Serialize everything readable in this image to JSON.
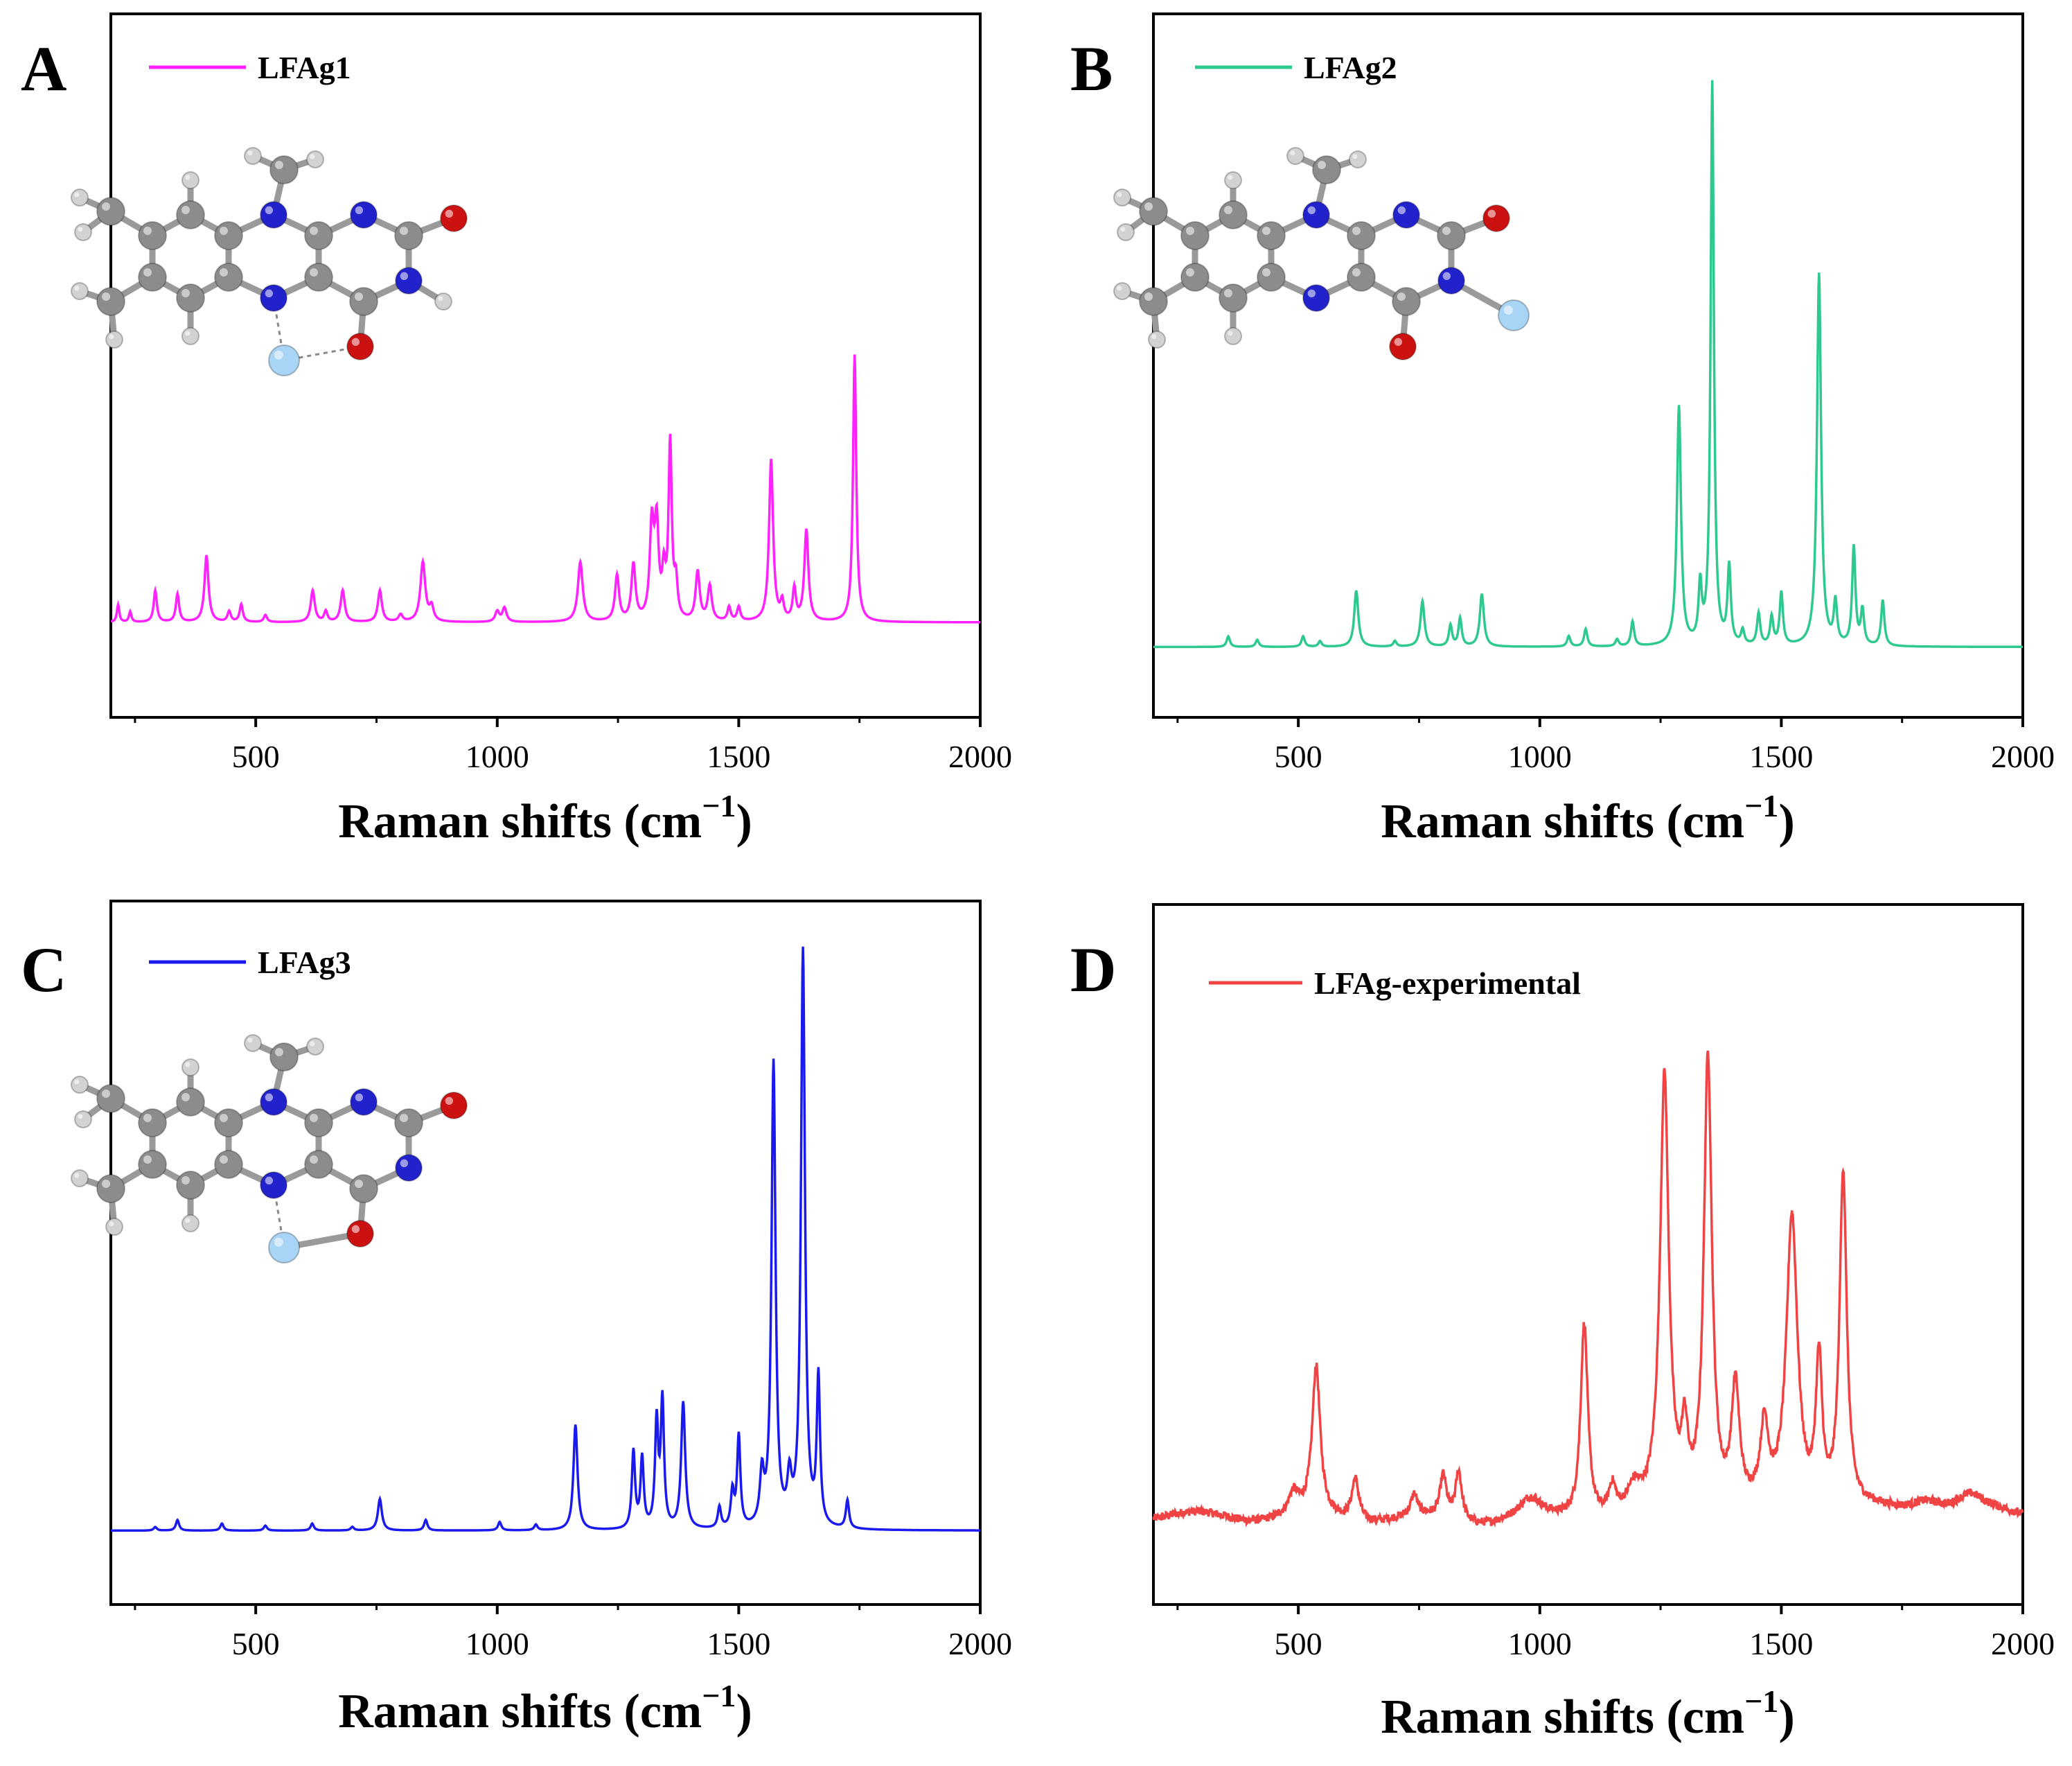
{
  "chart_data": [
    {
      "panel": "A",
      "type": "line",
      "series": [
        {
          "name": "LFAg1",
          "color": "#ff22ff"
        }
      ],
      "xlabel": "Raman shifts (cm−1)",
      "xlim": [
        200,
        2000
      ],
      "xticks": [
        500,
        1000,
        1500,
        2000
      ],
      "ylim": [
        0,
        100
      ],
      "baseline": 13.5,
      "noise": 0,
      "peaks": [
        [
          215,
          2.5,
          3
        ],
        [
          240,
          1.5,
          3
        ],
        [
          292,
          4.5,
          4
        ],
        [
          338,
          4,
          4
        ],
        [
          398,
          9.5,
          5
        ],
        [
          445,
          1.5,
          4
        ],
        [
          470,
          2.5,
          4
        ],
        [
          520,
          1,
          4
        ],
        [
          618,
          4.5,
          5
        ],
        [
          645,
          1.5,
          4
        ],
        [
          680,
          4.5,
          5
        ],
        [
          757,
          4.5,
          5
        ],
        [
          800,
          1,
          5
        ],
        [
          846,
          8.5,
          6
        ],
        [
          864,
          2,
          5
        ],
        [
          1000,
          1.5,
          5
        ],
        [
          1015,
          2,
          5
        ],
        [
          1172,
          8.5,
          6
        ],
        [
          1248,
          6.5,
          5
        ],
        [
          1282,
          8,
          5
        ],
        [
          1320,
          13,
          5
        ],
        [
          1330,
          13,
          5
        ],
        [
          1345,
          6,
          4
        ],
        [
          1358,
          25,
          4
        ],
        [
          1370,
          5,
          4
        ],
        [
          1415,
          7,
          5
        ],
        [
          1440,
          5,
          5
        ],
        [
          1480,
          2,
          4
        ],
        [
          1500,
          2,
          4
        ],
        [
          1567,
          23,
          5
        ],
        [
          1590,
          2.5,
          4
        ],
        [
          1615,
          4.5,
          4
        ],
        [
          1640,
          13,
          5
        ],
        [
          1740,
          38,
          4
        ]
      ],
      "molecule": "LFAg1"
    },
    {
      "panel": "B",
      "type": "line",
      "series": [
        {
          "name": "LFAg2",
          "color": "#2ec98e"
        }
      ],
      "xlabel": "Raman shifts (cm−1)",
      "xlim": [
        200,
        2000
      ],
      "xticks": [
        500,
        1000,
        1500,
        2000
      ],
      "ylim": [
        0,
        100
      ],
      "baseline": 10,
      "noise": 0,
      "peaks": [
        [
          355,
          1.5,
          4
        ],
        [
          415,
          1,
          4
        ],
        [
          510,
          1.5,
          4
        ],
        [
          545,
          0.8,
          4
        ],
        [
          620,
          8,
          5
        ],
        [
          700,
          0.8,
          4
        ],
        [
          757,
          6.5,
          5
        ],
        [
          815,
          3,
          4
        ],
        [
          835,
          4,
          4
        ],
        [
          880,
          7.5,
          5
        ],
        [
          1060,
          1.5,
          4
        ],
        [
          1095,
          2.5,
          4
        ],
        [
          1160,
          1,
          4
        ],
        [
          1192,
          3.5,
          4
        ],
        [
          1288,
          34,
          5
        ],
        [
          1332,
          8,
          4
        ],
        [
          1357,
          80,
          4
        ],
        [
          1392,
          11,
          4
        ],
        [
          1420,
          2,
          4
        ],
        [
          1453,
          4.5,
          4
        ],
        [
          1480,
          4,
          4
        ],
        [
          1500,
          7.5,
          4
        ],
        [
          1578,
          53,
          5
        ],
        [
          1612,
          6,
          4
        ],
        [
          1650,
          14,
          4
        ],
        [
          1668,
          5,
          4
        ],
        [
          1710,
          6.5,
          4
        ]
      ],
      "molecule": "LFAg2"
    },
    {
      "panel": "C",
      "type": "line",
      "series": [
        {
          "name": "LFAg3",
          "color": "#1a1aee"
        }
      ],
      "xlabel": "Raman shifts (cm−1)",
      "xlim": [
        200,
        2000
      ],
      "xticks": [
        500,
        1000,
        1500,
        2000
      ],
      "ylim": [
        0,
        100
      ],
      "baseline": 10.5,
      "noise": 0,
      "peaks": [
        [
          292,
          0.5,
          4
        ],
        [
          338,
          1.5,
          4
        ],
        [
          430,
          1,
          4
        ],
        [
          520,
          0.7,
          4
        ],
        [
          617,
          1,
          4
        ],
        [
          700,
          0.5,
          4
        ],
        [
          757,
          4.5,
          5
        ],
        [
          852,
          1.5,
          4
        ],
        [
          1005,
          1.2,
          4
        ],
        [
          1080,
          0.8,
          4
        ],
        [
          1162,
          15,
          5
        ],
        [
          1282,
          11,
          4
        ],
        [
          1300,
          10,
          4
        ],
        [
          1330,
          15,
          4
        ],
        [
          1342,
          18,
          4
        ],
        [
          1385,
          18,
          5
        ],
        [
          1460,
          3,
          4
        ],
        [
          1487,
          5,
          4
        ],
        [
          1500,
          13,
          4
        ],
        [
          1548,
          7,
          5
        ],
        [
          1572,
          66,
          5
        ],
        [
          1605,
          6,
          5
        ],
        [
          1633,
          82,
          5
        ],
        [
          1665,
          21,
          4
        ],
        [
          1725,
          4,
          4
        ]
      ],
      "molecule": "LFAg3"
    },
    {
      "panel": "D",
      "type": "line",
      "series": [
        {
          "name": "LFAg-experimental",
          "color": "#f04444"
        }
      ],
      "xlabel": "Raman shifts (cm−1)",
      "xlim": [
        200,
        2000
      ],
      "xticks": [
        500,
        1000,
        1500,
        2000
      ],
      "ylim": [
        0,
        100
      ],
      "baseline": 13,
      "noise": 0.6,
      "peaks": [
        [
          490,
          3,
          12
        ],
        [
          537,
          21,
          10
        ],
        [
          618,
          6,
          9
        ],
        [
          740,
          3,
          8
        ],
        [
          800,
          6,
          8
        ],
        [
          832,
          7,
          8
        ],
        [
          980,
          2.5,
          25
        ],
        [
          1092,
          28,
          9
        ],
        [
          1150,
          4,
          9
        ],
        [
          1195,
          3,
          15
        ],
        [
          1258,
          62,
          11
        ],
        [
          1300,
          10,
          8
        ],
        [
          1348,
          65,
          10
        ],
        [
          1405,
          17,
          10
        ],
        [
          1465,
          11,
          10
        ],
        [
          1522,
          42,
          14
        ],
        [
          1578,
          21,
          8
        ],
        [
          1628,
          48,
          9
        ],
        [
          1800,
          2,
          40
        ],
        [
          1890,
          2,
          30
        ]
      ],
      "molecule": null
    }
  ]
}
